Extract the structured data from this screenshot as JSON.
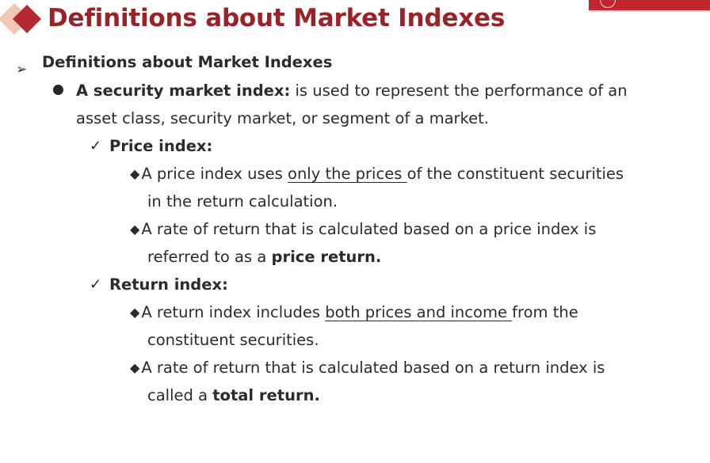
{
  "header": {
    "title": "Definitions about Market Indexes",
    "accent_color": "#9a2328",
    "diamond_colors": [
      "#f0c8b4",
      "#b22a2f"
    ]
  },
  "content": {
    "level1": {
      "label": "Definitions about Market Indexes"
    },
    "security_index": {
      "term": "A security market index:",
      "line1_rest": " is used to represent the performance of an",
      "line2": "asset class, security market, or segment of a market."
    },
    "price_index": {
      "heading": "Price index:",
      "item1_pre": "A price index uses ",
      "item1_underlined": "only the prices ",
      "item1_post": "of the constituent securities",
      "item1_line2": "in the return calculation.",
      "item2_line1": "A rate of return that is calculated based on a price index is",
      "item2_line2_pre": "referred to as a ",
      "item2_line2_bold": "price return."
    },
    "return_index": {
      "heading": "Return index:",
      "item1_pre": "A return index includes ",
      "item1_underlined": "both prices and income ",
      "item1_post": "from the",
      "item1_line2": "constituent securities.",
      "item2_line1": "A rate of return that is calculated based on a return index is",
      "item2_line2_pre": "called a ",
      "item2_line2_bold": "total return."
    }
  }
}
